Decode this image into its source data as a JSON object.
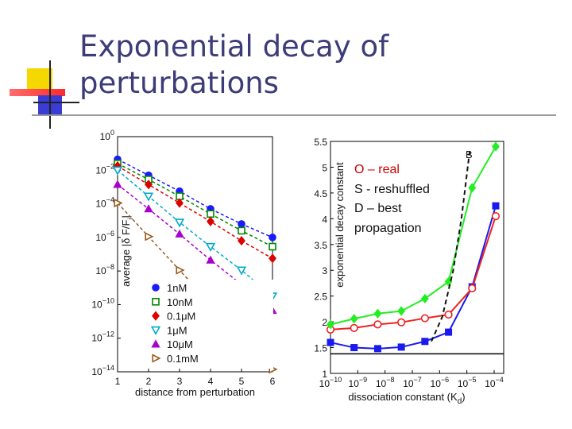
{
  "title": "Exponential decay of perturbations",
  "annotation": {
    "line1": "O – real",
    "line2": "S - reshuffled",
    "line3": "D – best",
    "line4": "propagation"
  },
  "colors": {
    "title": "#3c3c78",
    "deco_yellow": "#f5d800",
    "deco_red": "#ff4444",
    "deco_blue": "#3b3bd6"
  },
  "chart_data": [
    {
      "type": "line",
      "xlabel": "distance from perturbation",
      "ylabel": "average |δ F/F_i|",
      "ylabel_main": "average |δ F/F",
      "ylabel_sub": "i",
      "ylabel_end": "|",
      "y_scale": "log",
      "xlim": [
        1,
        6
      ],
      "ylim_log10": [
        -14,
        0
      ],
      "x_ticks": [
        "1",
        "2",
        "3",
        "4",
        "5",
        "6"
      ],
      "y_ticks": [
        {
          "exp": 0,
          "label": "10",
          "sup": "0"
        },
        {
          "exp": -2,
          "label": "10",
          "sup": "−2"
        },
        {
          "exp": -4,
          "label": "10",
          "sup": "−4"
        },
        {
          "exp": -6,
          "label": "10",
          "sup": "−6"
        },
        {
          "exp": -8,
          "label": "10",
          "sup": "−8"
        },
        {
          "exp": -10,
          "label": "10",
          "sup": "−10"
        },
        {
          "exp": -12,
          "label": "10",
          "sup": "−12"
        },
        {
          "exp": -14,
          "label": "10",
          "sup": "−14"
        }
      ],
      "legend_position": "bottom-right",
      "x": [
        1,
        2,
        3,
        4,
        5,
        6
      ],
      "series": [
        {
          "name": "1nM",
          "color": "#1a1aff",
          "marker": "circle",
          "log10_values": [
            -1.35,
            -2.3,
            -3.25,
            -4.3,
            -5.2,
            -6.0
          ]
        },
        {
          "name": "10nM",
          "color": "#008800",
          "marker": "square-open",
          "log10_values": [
            -1.6,
            -2.55,
            -3.55,
            -4.6,
            -5.6,
            -6.55
          ]
        },
        {
          "name": "0.1μM",
          "color": "#dd0000",
          "marker": "diamond",
          "log10_values": [
            -1.75,
            -2.85,
            -3.95,
            -5.05,
            -6.2,
            -7.25
          ]
        },
        {
          "name": "1μM",
          "color": "#00aacc",
          "marker": "triangle-down-open",
          "log10_values": [
            -2.0,
            -3.55,
            -5.1,
            -6.55,
            -7.95,
            -9.5
          ]
        },
        {
          "name": "10μM",
          "color": "#aa00cc",
          "marker": "triangle-up",
          "log10_values": [
            -2.85,
            -4.3,
            -5.8,
            -7.35,
            -8.8,
            -10.35
          ]
        },
        {
          "name": "0.1mM",
          "color": "#9a5a1e",
          "marker": "triangle-right-open",
          "log10_values": [
            -3.95,
            -5.95,
            -7.95,
            -9.95,
            -11.9,
            -13.85
          ]
        }
      ]
    },
    {
      "type": "line",
      "xlabel": "dissociation constant (K",
      "xlabel_sub": "d",
      "xlabel_end": ")",
      "ylabel": "exponential decay constant",
      "x_scale": "log",
      "xlim_log10": [
        -10,
        -4
      ],
      "ylim": [
        1,
        5.5
      ],
      "x_ticks": [
        {
          "exp": -10,
          "label": "10",
          "sup": "−10"
        },
        {
          "exp": -9,
          "label": "10",
          "sup": "−9"
        },
        {
          "exp": -8,
          "label": "10",
          "sup": "−8"
        },
        {
          "exp": -7,
          "label": "10",
          "sup": "−7"
        },
        {
          "exp": -6,
          "label": "10",
          "sup": "−6"
        },
        {
          "exp": -5,
          "label": "10",
          "sup": "−5"
        },
        {
          "exp": -4,
          "label": "10",
          "sup": "−4"
        }
      ],
      "y_ticks": [
        "1",
        "1.5",
        "2",
        "2.5",
        "3",
        "3.5",
        "4",
        "4.5",
        "5",
        "5.5"
      ],
      "panel_label": "B",
      "series": [
        {
          "name": "S",
          "color": "#22ee22",
          "marker": "diamond",
          "log10_x": [
            -10,
            -9.5,
            -9,
            -8.5,
            -8,
            -7.5,
            -7,
            -6.5,
            -6,
            -5.5,
            -5
          ],
          "y": [
            1.95,
            2.06,
            2.12,
            2.16,
            2.21,
            2.33,
            2.45,
            2.78,
            3.55,
            4.6,
            5.4
          ]
        },
        {
          "name": "O",
          "color": "#ee2222",
          "marker": "circle-open",
          "log10_x": [
            -10,
            -9.5,
            -9,
            -8.5,
            -8,
            -7.5,
            -7,
            -6.5,
            -6,
            -5.5,
            -5
          ],
          "y": [
            1.85,
            1.88,
            1.92,
            1.95,
            1.99,
            2.04,
            2.07,
            2.14,
            2.2,
            2.65,
            4.05
          ]
        },
        {
          "name": "D",
          "color": "#1a1aee",
          "marker": "square",
          "log10_x": [
            -10,
            -9.5,
            -9,
            -8.5,
            -8,
            -7.5,
            -7,
            -6.5,
            -6,
            -5.5,
            -5
          ],
          "y": [
            1.6,
            1.5,
            1.47,
            1.48,
            1.51,
            1.56,
            1.62,
            1.8,
            1.98,
            2.68,
            4.25
          ]
        },
        {
          "name": "fit",
          "color": "#111111",
          "dashed": true,
          "log10_x": [
            -6.3,
            -5.9,
            -5.5,
            -5.2,
            -4.9
          ],
          "y": [
            1.62,
            2.1,
            3.0,
            4.0,
            5.3
          ]
        }
      ],
      "hline": 1.38,
      "marker_x_log10": [
        -10,
        -9.25,
        -8.45,
        -7.6,
        -6.85,
        -6.1,
        -5.25,
        -4.4
      ]
    }
  ]
}
